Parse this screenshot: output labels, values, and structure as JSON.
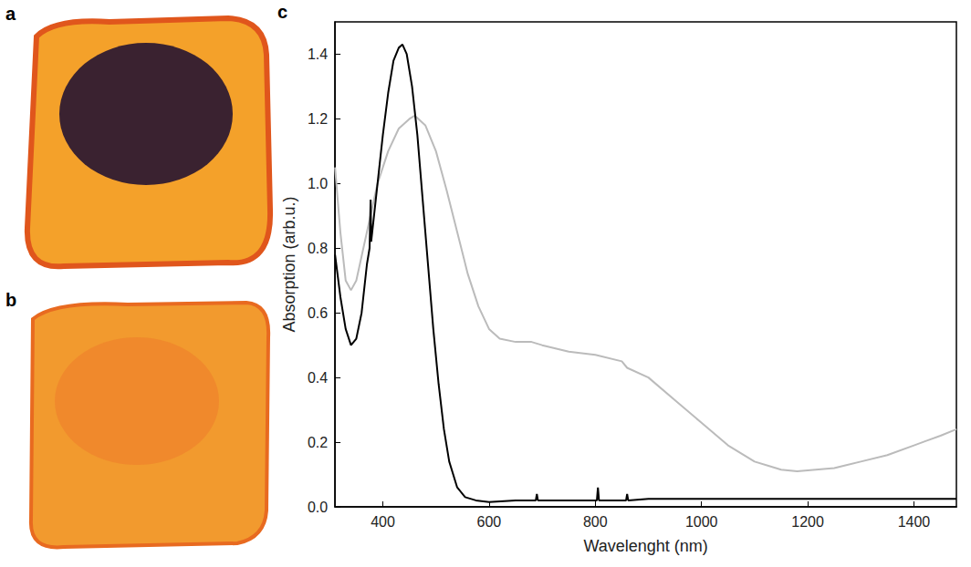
{
  "panel_labels": [
    "a",
    "b",
    "c"
  ],
  "chart_data": {
    "type": "line",
    "x_label": "Wavelenght (nm)",
    "y_label": "Absorption (arb.u.)",
    "xlim": [
      310,
      1480
    ],
    "xticks": [
      400,
      600,
      800,
      1000,
      1200,
      1400
    ],
    "ylim": [
      0,
      1.5
    ],
    "yticks": [
      {
        "value": 0,
        "label": "0.0"
      },
      0.2,
      0.4,
      0.6,
      0.8,
      {
        "value": 1,
        "label": "1.0"
      },
      1.2,
      1.4
    ],
    "grid": false,
    "marker": "none",
    "line_style": "solid",
    "series": [
      {
        "color": "#000000",
        "x": [
          310,
          320,
          330,
          340,
          350,
          360,
          370,
          375,
          377,
          378,
          380,
          390,
          400,
          410,
          420,
          430,
          437,
          445,
          455,
          465,
          475,
          485,
          495,
          505,
          515,
          525,
          540,
          555,
          575,
          600,
          650,
          688,
          690,
          692,
          750,
          803,
          805,
          807,
          858,
          860,
          862,
          900,
          1000,
          1100,
          1200,
          1300,
          1400,
          1480
        ],
        "values": [
          0.78,
          0.65,
          0.55,
          0.5,
          0.52,
          0.6,
          0.75,
          0.8,
          0.95,
          0.82,
          0.85,
          1.0,
          1.15,
          1.28,
          1.38,
          1.42,
          1.43,
          1.4,
          1.3,
          1.15,
          0.95,
          0.75,
          0.55,
          0.38,
          0.24,
          0.14,
          0.06,
          0.03,
          0.02,
          0.015,
          0.02,
          0.02,
          0.04,
          0.02,
          0.02,
          0.02,
          0.06,
          0.02,
          0.02,
          0.04,
          0.02,
          0.025,
          0.025,
          0.025,
          0.025,
          0.025,
          0.025,
          0.025
        ]
      },
      {
        "color": "#bbbbbb",
        "x": [
          310,
          320,
          330,
          340,
          350,
          370,
          390,
          410,
          430,
          450,
          460,
          480,
          500,
          520,
          540,
          560,
          580,
          600,
          620,
          650,
          680,
          700,
          750,
          800,
          850,
          860,
          900,
          950,
          1000,
          1050,
          1100,
          1150,
          1180,
          1250,
          1300,
          1350,
          1400,
          1450,
          1480
        ],
        "values": [
          1.05,
          0.85,
          0.7,
          0.67,
          0.7,
          0.85,
          1.0,
          1.1,
          1.17,
          1.2,
          1.21,
          1.18,
          1.1,
          0.98,
          0.85,
          0.72,
          0.62,
          0.55,
          0.52,
          0.51,
          0.51,
          0.5,
          0.48,
          0.47,
          0.45,
          0.43,
          0.4,
          0.33,
          0.26,
          0.19,
          0.14,
          0.115,
          0.11,
          0.12,
          0.14,
          0.16,
          0.19,
          0.22,
          0.24
        ]
      }
    ]
  }
}
